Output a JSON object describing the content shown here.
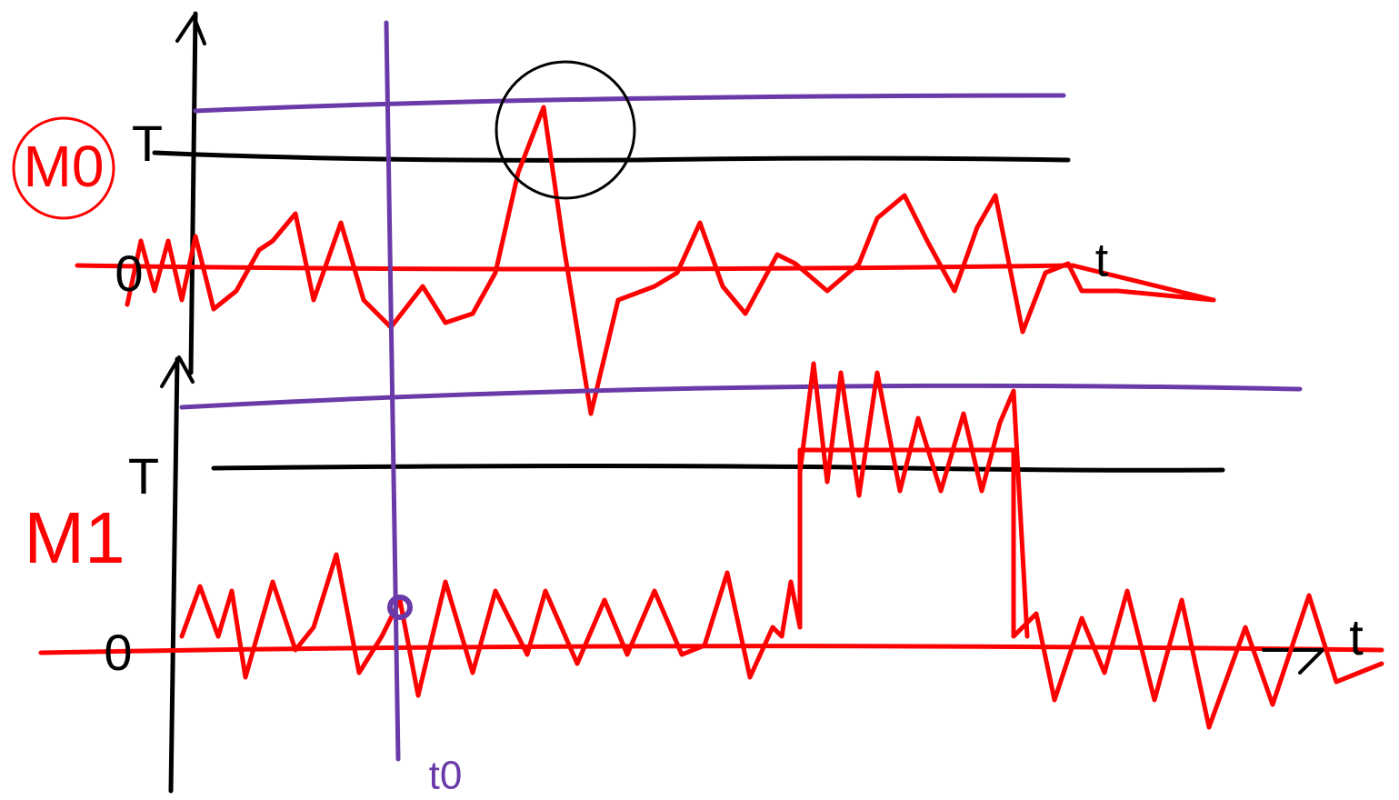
{
  "panels": [
    {
      "label": "M0",
      "threshold_label": "T",
      "zero_label": "0",
      "axis_label": "t"
    },
    {
      "label": "M1",
      "threshold_label": "T",
      "zero_label": "0",
      "axis_label": "t"
    }
  ],
  "marker": {
    "label": "t0"
  }
}
